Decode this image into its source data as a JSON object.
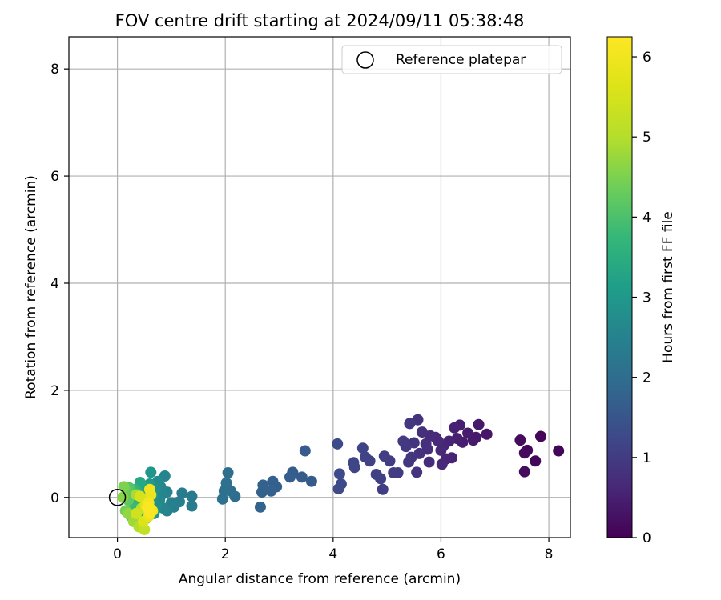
{
  "chart_data": {
    "type": "scatter",
    "title": "FOV centre drift starting at 2024/09/11 05:38:48",
    "xlabel": "Angular distance from reference (arcmin)",
    "ylabel": "Rotation from reference (arcmin)",
    "xlim": [
      -0.9,
      8.4
    ],
    "ylim": [
      -0.75,
      8.6
    ],
    "xticks": [
      0,
      2,
      4,
      6,
      8
    ],
    "yticks": [
      0,
      2,
      4,
      6,
      8
    ],
    "grid": true,
    "legend": {
      "placement": "top-right",
      "entries": [
        "Reference platepar"
      ]
    },
    "reference_point": {
      "x": 0,
      "y": 0
    },
    "colorbar": {
      "label": "Hours from first FF file",
      "colormap": "viridis",
      "range": [
        0,
        6.25
      ],
      "ticks": [
        0,
        1,
        2,
        3,
        4,
        5,
        6
      ]
    },
    "series": [
      {
        "marker": "filled-circle",
        "points": [
          {
            "x": 8.18,
            "y": 0.87,
            "c": 0.05
          },
          {
            "x": 7.85,
            "y": 1.14,
            "c": 0.08
          },
          {
            "x": 7.75,
            "y": 0.68,
            "c": 0.1
          },
          {
            "x": 7.6,
            "y": 0.88,
            "c": 0.12
          },
          {
            "x": 7.55,
            "y": 0.83,
            "c": 0.14
          },
          {
            "x": 7.55,
            "y": 0.48,
            "c": 0.16
          },
          {
            "x": 7.47,
            "y": 1.07,
            "c": 0.18
          },
          {
            "x": 6.85,
            "y": 1.18,
            "c": 0.35
          },
          {
            "x": 6.7,
            "y": 1.36,
            "c": 0.38
          },
          {
            "x": 6.65,
            "y": 1.12,
            "c": 0.4
          },
          {
            "x": 6.6,
            "y": 1.07,
            "c": 0.42
          },
          {
            "x": 6.5,
            "y": 1.2,
            "c": 0.44
          },
          {
            "x": 6.4,
            "y": 1.03,
            "c": 0.46
          },
          {
            "x": 6.35,
            "y": 1.35,
            "c": 0.48
          },
          {
            "x": 6.3,
            "y": 1.1,
            "c": 0.5
          },
          {
            "x": 6.25,
            "y": 1.3,
            "c": 0.52
          },
          {
            "x": 6.2,
            "y": 0.74,
            "c": 0.54
          },
          {
            "x": 6.15,
            "y": 1.05,
            "c": 0.56
          },
          {
            "x": 6.1,
            "y": 0.72,
            "c": 0.58
          },
          {
            "x": 6.05,
            "y": 0.97,
            "c": 0.6
          },
          {
            "x": 6.02,
            "y": 0.62,
            "c": 0.62
          },
          {
            "x": 6.0,
            "y": 0.88,
            "c": 0.64
          },
          {
            "x": 5.95,
            "y": 1.05,
            "c": 0.66
          },
          {
            "x": 5.9,
            "y": 1.12,
            "c": 0.68
          },
          {
            "x": 5.8,
            "y": 1.15,
            "c": 0.7
          },
          {
            "x": 5.78,
            "y": 0.66,
            "c": 0.72
          },
          {
            "x": 5.75,
            "y": 0.9,
            "c": 0.74
          },
          {
            "x": 5.72,
            "y": 1.0,
            "c": 0.76
          },
          {
            "x": 5.65,
            "y": 1.22,
            "c": 0.78
          },
          {
            "x": 5.6,
            "y": 0.82,
            "c": 0.8
          },
          {
            "x": 5.57,
            "y": 1.45,
            "c": 0.82
          },
          {
            "x": 5.55,
            "y": 0.47,
            "c": 0.84
          },
          {
            "x": 5.5,
            "y": 1.02,
            "c": 0.86
          },
          {
            "x": 5.45,
            "y": 0.75,
            "c": 0.88
          },
          {
            "x": 5.42,
            "y": 1.38,
            "c": 0.9
          },
          {
            "x": 5.4,
            "y": 0.66,
            "c": 0.92
          },
          {
            "x": 5.35,
            "y": 0.95,
            "c": 0.94
          },
          {
            "x": 5.3,
            "y": 1.05,
            "c": 0.96
          },
          {
            "x": 5.2,
            "y": 0.46,
            "c": 0.98
          },
          {
            "x": 5.12,
            "y": 0.46,
            "c": 1.0
          },
          {
            "x": 5.05,
            "y": 0.68,
            "c": 1.02
          },
          {
            "x": 4.95,
            "y": 0.77,
            "c": 1.04
          },
          {
            "x": 4.92,
            "y": 0.15,
            "c": 1.06
          },
          {
            "x": 4.88,
            "y": 0.35,
            "c": 1.08
          },
          {
            "x": 4.8,
            "y": 0.43,
            "c": 1.1
          },
          {
            "x": 4.68,
            "y": 0.68,
            "c": 1.12
          },
          {
            "x": 4.6,
            "y": 0.75,
            "c": 1.14
          },
          {
            "x": 4.55,
            "y": 0.92,
            "c": 1.16
          },
          {
            "x": 4.4,
            "y": 0.56,
            "c": 1.18
          },
          {
            "x": 4.38,
            "y": 0.65,
            "c": 1.2
          },
          {
            "x": 4.15,
            "y": 0.25,
            "c": 1.25
          },
          {
            "x": 4.12,
            "y": 0.44,
            "c": 1.27
          },
          {
            "x": 4.1,
            "y": 0.16,
            "c": 1.29
          },
          {
            "x": 4.08,
            "y": 1.0,
            "c": 1.31
          },
          {
            "x": 3.6,
            "y": 0.3,
            "c": 1.6
          },
          {
            "x": 3.48,
            "y": 0.87,
            "c": 1.62
          },
          {
            "x": 3.42,
            "y": 0.38,
            "c": 1.64
          },
          {
            "x": 3.25,
            "y": 0.47,
            "c": 1.66
          },
          {
            "x": 3.2,
            "y": 0.38,
            "c": 1.68
          },
          {
            "x": 2.95,
            "y": 0.2,
            "c": 1.7
          },
          {
            "x": 2.88,
            "y": 0.3,
            "c": 1.72
          },
          {
            "x": 2.85,
            "y": 0.12,
            "c": 1.74
          },
          {
            "x": 2.7,
            "y": 0.23,
            "c": 1.76
          },
          {
            "x": 2.68,
            "y": 0.1,
            "c": 1.78
          },
          {
            "x": 2.65,
            "y": -0.18,
            "c": 1.8
          },
          {
            "x": 2.18,
            "y": 0.02,
            "c": 2.0
          },
          {
            "x": 2.1,
            "y": 0.12,
            "c": 2.02
          },
          {
            "x": 2.05,
            "y": 0.46,
            "c": 2.04
          },
          {
            "x": 2.02,
            "y": 0.27,
            "c": 2.06
          },
          {
            "x": 1.98,
            "y": 0.12,
            "c": 2.08
          },
          {
            "x": 1.95,
            "y": -0.03,
            "c": 2.1
          },
          {
            "x": 1.38,
            "y": 0.02,
            "c": 2.3
          },
          {
            "x": 1.38,
            "y": -0.16,
            "c": 2.32
          },
          {
            "x": 1.2,
            "y": 0.08,
            "c": 2.35
          },
          {
            "x": 1.15,
            "y": -0.08,
            "c": 2.38
          },
          {
            "x": 1.05,
            "y": -0.18,
            "c": 2.42
          },
          {
            "x": 1.0,
            "y": -0.1,
            "c": 2.45
          },
          {
            "x": 0.92,
            "y": 0.1,
            "c": 2.5
          },
          {
            "x": 0.92,
            "y": -0.25,
            "c": 2.52
          },
          {
            "x": 0.88,
            "y": 0.4,
            "c": 2.55
          },
          {
            "x": 0.85,
            "y": -0.2,
            "c": 2.58
          },
          {
            "x": 0.82,
            "y": 0.05,
            "c": 2.6
          },
          {
            "x": 0.8,
            "y": 0.2,
            "c": 2.62
          },
          {
            "x": 0.78,
            "y": -0.05,
            "c": 2.65
          },
          {
            "x": 0.75,
            "y": 0.3,
            "c": 2.7
          },
          {
            "x": 0.72,
            "y": -0.15,
            "c": 2.75
          },
          {
            "x": 0.7,
            "y": 0.15,
            "c": 2.8
          },
          {
            "x": 0.68,
            "y": -0.3,
            "c": 2.85
          },
          {
            "x": 0.65,
            "y": 0.02,
            "c": 2.9
          },
          {
            "x": 0.62,
            "y": 0.47,
            "c": 2.95
          },
          {
            "x": 0.6,
            "y": 0.25,
            "c": 3.0
          },
          {
            "x": 0.58,
            "y": -0.1,
            "c": 3.05
          },
          {
            "x": 0.55,
            "y": 0.12,
            "c": 3.1
          },
          {
            "x": 0.52,
            "y": -0.4,
            "c": 3.15
          },
          {
            "x": 0.5,
            "y": 0.2,
            "c": 3.2
          },
          {
            "x": 0.48,
            "y": -0.2,
            "c": 3.25
          },
          {
            "x": 0.45,
            "y": 0.05,
            "c": 3.3
          },
          {
            "x": 0.42,
            "y": 0.28,
            "c": 3.35
          },
          {
            "x": 0.4,
            "y": -0.3,
            "c": 3.4
          },
          {
            "x": 0.38,
            "y": 0.1,
            "c": 3.5
          },
          {
            "x": 0.35,
            "y": -0.1,
            "c": 3.6
          },
          {
            "x": 0.32,
            "y": 0.15,
            "c": 3.7
          },
          {
            "x": 0.3,
            "y": -0.2,
            "c": 3.8
          },
          {
            "x": 0.28,
            "y": 0.05,
            "c": 3.9
          },
          {
            "x": 0.25,
            "y": -0.35,
            "c": 4.0
          },
          {
            "x": 0.22,
            "y": 0.18,
            "c": 4.1
          },
          {
            "x": 0.2,
            "y": -0.05,
            "c": 4.2
          },
          {
            "x": 0.18,
            "y": 0.1,
            "c": 4.3
          },
          {
            "x": 0.15,
            "y": -0.25,
            "c": 4.4
          },
          {
            "x": 0.12,
            "y": 0.2,
            "c": 4.5
          },
          {
            "x": 0.1,
            "y": 0.0,
            "c": 4.6
          },
          {
            "x": 0.2,
            "y": -0.3,
            "c": 4.7
          },
          {
            "x": 0.3,
            "y": -0.45,
            "c": 4.8
          },
          {
            "x": 0.35,
            "y": 0.05,
            "c": 4.9
          },
          {
            "x": 0.4,
            "y": -0.55,
            "c": 5.0
          },
          {
            "x": 0.45,
            "y": -0.2,
            "c": 5.1
          },
          {
            "x": 0.5,
            "y": -0.6,
            "c": 5.2
          },
          {
            "x": 0.55,
            "y": -0.05,
            "c": 5.3
          },
          {
            "x": 0.35,
            "y": -0.3,
            "c": 5.4
          },
          {
            "x": 0.42,
            "y": 0.02,
            "c": 5.5
          },
          {
            "x": 0.48,
            "y": -0.45,
            "c": 5.6
          },
          {
            "x": 0.52,
            "y": -0.15,
            "c": 5.7
          },
          {
            "x": 0.58,
            "y": -0.35,
            "c": 5.8
          },
          {
            "x": 0.62,
            "y": 0.05,
            "c": 5.85
          },
          {
            "x": 0.65,
            "y": -0.25,
            "c": 5.9
          },
          {
            "x": 0.6,
            "y": 0.15,
            "c": 5.95
          },
          {
            "x": 0.55,
            "y": -0.2,
            "c": 6.0
          },
          {
            "x": 0.58,
            "y": -0.1,
            "c": 6.05
          },
          {
            "x": 0.62,
            "y": -0.22,
            "c": 6.1
          },
          {
            "x": 0.6,
            "y": -0.3,
            "c": 6.15
          },
          {
            "x": 0.57,
            "y": -0.18,
            "c": 6.2
          }
        ]
      }
    ]
  }
}
